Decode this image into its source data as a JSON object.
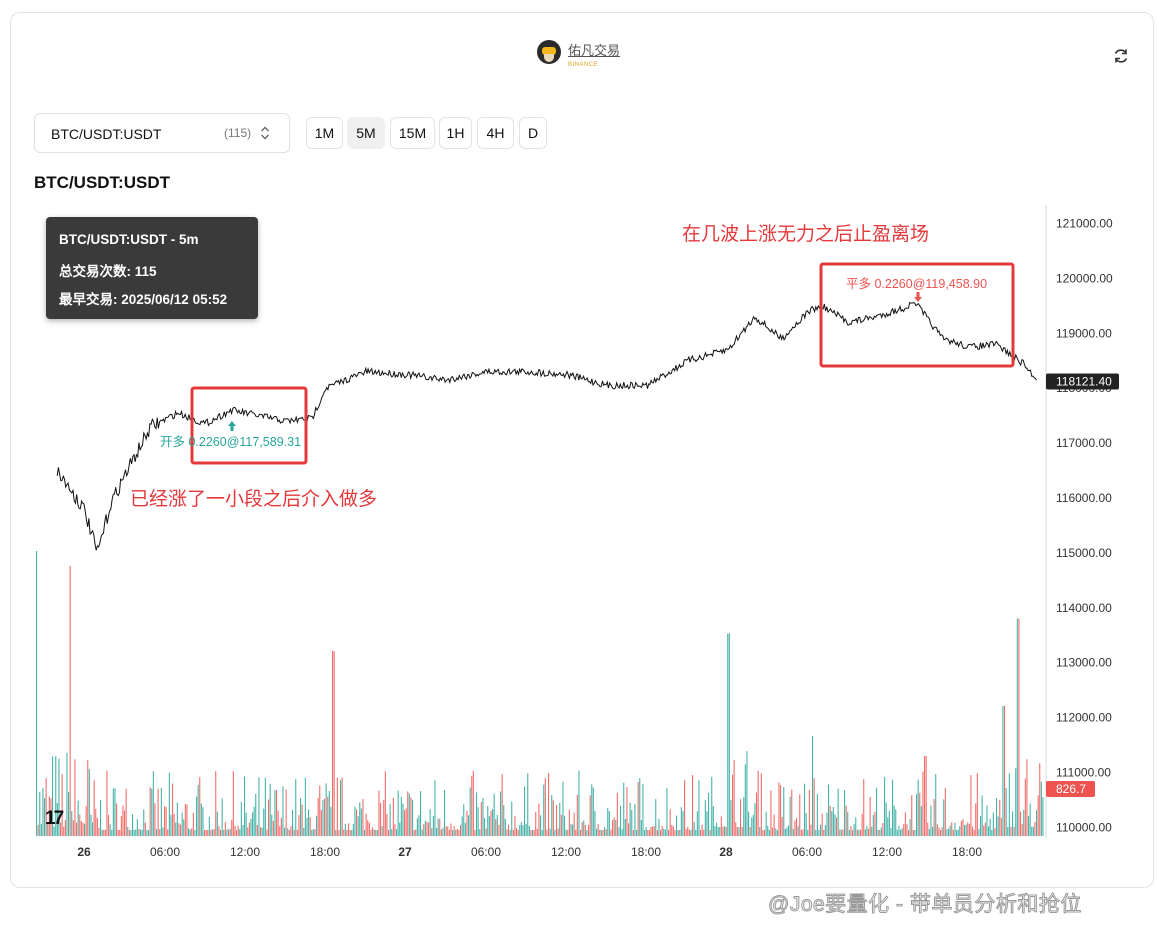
{
  "header": {
    "brand_name": "佑凡交易",
    "brand_sub": "BINANCE"
  },
  "selector": {
    "symbol": "BTC/USDT:USDT",
    "count": "(115)"
  },
  "timeframes": [
    {
      "label": "1M",
      "active": false
    },
    {
      "label": "5M",
      "active": true
    },
    {
      "label": "15M",
      "active": false
    },
    {
      "label": "1H",
      "active": false
    },
    {
      "label": "4H",
      "active": false
    },
    {
      "label": "D",
      "active": false
    }
  ],
  "chart_title": "BTC/USDT:USDT",
  "tooltip": {
    "line1": "BTC/USDT:USDT - 5m",
    "line2": "总交易次数: 115",
    "line3": "最早交易: 2025/06/12 05:52"
  },
  "annotations": {
    "top": "在几波上涨无力之后止盈离场",
    "bottom": "已经涨了一小段之后介入做多"
  },
  "trade_labels": {
    "entry": "开多 0.2260@117,589.31",
    "exit": "平多 0.2260@119,458.90"
  },
  "tv_logo": "17",
  "watermark": "@Joe要量化 - 带单员分析和抢位",
  "colors": {
    "up": "#26a69a",
    "down": "#ef5350",
    "annotation": "#e5383b",
    "price_tag": "#222222"
  },
  "chart_data": {
    "type": "line",
    "title": "BTC/USDT:USDT",
    "y_axis": {
      "ticks": [
        "121000.00",
        "120000.00",
        "119000.00",
        "118000.00",
        "117000.00",
        "116000.00",
        "115000.00",
        "114000.00",
        "113000.00",
        "112000.00",
        "111000.00",
        "110000.00"
      ],
      "range": [
        110000,
        121000
      ]
    },
    "x_axis": {
      "ticks": [
        "26",
        "06:00",
        "12:00",
        "18:00",
        "27",
        "06:00",
        "12:00",
        "18:00",
        "28",
        "06:00",
        "12:00",
        "18:00"
      ],
      "bold_ticks": [
        "26",
        "27",
        "28"
      ]
    },
    "last_price": "118121.40",
    "last_volume": "826.7",
    "series": [
      {
        "name": "BTC/USDT:USDT",
        "x": [
          "25 22:00",
          "26 00:00",
          "26 01:00",
          "26 02:00",
          "26 03:00",
          "26 05:00",
          "26 07:00",
          "26 09:00",
          "26 11:00",
          "26 13:00",
          "26 15:00",
          "26 17:00",
          "26 18:00",
          "26 21:00",
          "27 00:00",
          "27 03:00",
          "27 06:00",
          "27 09:00",
          "27 12:00",
          "27 15:00",
          "27 18:00",
          "27 21:00",
          "28 00:00",
          "28 02:00",
          "28 04:00",
          "28 06:00",
          "28 07:00",
          "28 09:00",
          "28 11:00",
          "28 13:00",
          "28 14:00",
          "28 16:00",
          "28 18:00",
          "28 20:00",
          "28 22:00",
          "28 23:00"
        ],
        "values": [
          116500,
          115800,
          115000,
          115900,
          116400,
          117300,
          117550,
          117350,
          117600,
          117500,
          117400,
          117450,
          118000,
          118300,
          118250,
          118150,
          118300,
          118300,
          118250,
          118050,
          118050,
          118500,
          118700,
          119300,
          118900,
          119400,
          119500,
          119200,
          119300,
          119450,
          119550,
          118900,
          118750,
          118800,
          118450,
          118150
        ]
      }
    ],
    "volume": {
      "note": "volume histogram bars along the bottom of the price pane"
    }
  }
}
